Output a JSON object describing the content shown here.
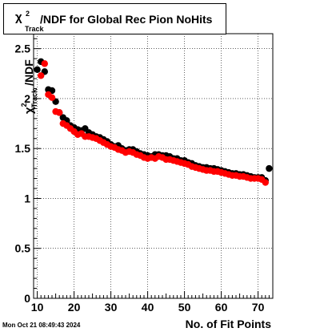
{
  "title": {
    "symbol": "χ",
    "superscript": "2",
    "subscript": "Track",
    "text": "/NDF for Global Rec Pion NoHits"
  },
  "timestamp": "Mon Oct 21 08:49:43 2024",
  "chart_data": {
    "type": "scatter",
    "title": "χ²_Track/NDF for Global Rec Pion NoHits",
    "xlabel": "No. of Fit Points",
    "ylabel": "χ²_Track/NDF",
    "xlim": [
      9,
      74
    ],
    "ylim": [
      0,
      2.65
    ],
    "x_ticks": [
      10,
      20,
      30,
      40,
      50,
      60,
      70
    ],
    "y_ticks": [
      0,
      0.5,
      1,
      1.5,
      2,
      2.5
    ],
    "x_tick_labels": [
      "10",
      "20",
      "30",
      "40",
      "50",
      "60",
      "70"
    ],
    "y_tick_labels": [
      "0",
      "0.5",
      "1",
      "1.5",
      "2",
      "2.5"
    ],
    "grid": true,
    "legend": "none",
    "series": [
      {
        "color": "#000000",
        "marker": "circle",
        "x": [
          10,
          11,
          12,
          13,
          14,
          15,
          16,
          17,
          18,
          19,
          20,
          21,
          22,
          23,
          24,
          25,
          26,
          27,
          28,
          29,
          30,
          31,
          32,
          33,
          34,
          35,
          36,
          37,
          38,
          39,
          40,
          41,
          42,
          43,
          44,
          45,
          46,
          47,
          48,
          49,
          50,
          51,
          52,
          53,
          54,
          55,
          56,
          57,
          58,
          59,
          60,
          61,
          62,
          63,
          64,
          65,
          66,
          67,
          68,
          69,
          70,
          71,
          72,
          73
        ],
        "y": [
          2.29,
          2.37,
          2.27,
          2.09,
          2.08,
          1.97,
          1.86,
          1.81,
          1.78,
          1.73,
          1.71,
          1.69,
          1.68,
          1.7,
          1.66,
          1.64,
          1.62,
          1.61,
          1.59,
          1.57,
          1.54,
          1.52,
          1.53,
          1.5,
          1.48,
          1.49,
          1.49,
          1.47,
          1.45,
          1.44,
          1.43,
          1.42,
          1.44,
          1.44,
          1.43,
          1.43,
          1.42,
          1.4,
          1.4,
          1.38,
          1.38,
          1.36,
          1.35,
          1.33,
          1.32,
          1.31,
          1.31,
          1.3,
          1.3,
          1.29,
          1.28,
          1.27,
          1.26,
          1.25,
          1.25,
          1.24,
          1.24,
          1.23,
          1.22,
          1.21,
          1.21,
          1.21,
          1.18,
          1.3
        ]
      },
      {
        "color": "#ff0000",
        "marker": "circle",
        "x": [
          11,
          12,
          13,
          14,
          15,
          16,
          17,
          18,
          19,
          20,
          21,
          22,
          23,
          24,
          25,
          26,
          27,
          28,
          29,
          30,
          31,
          32,
          33,
          34,
          35,
          36,
          37,
          38,
          39,
          40,
          41,
          42,
          43,
          44,
          45,
          46,
          47,
          48,
          49,
          50,
          51,
          52,
          53,
          54,
          55,
          56,
          57,
          58,
          59,
          60,
          61,
          62,
          63,
          64,
          65,
          66,
          67,
          68,
          69,
          70,
          71,
          72
        ],
        "y": [
          2.23,
          2.35,
          2.04,
          2.01,
          1.87,
          1.86,
          1.75,
          1.73,
          1.7,
          1.67,
          1.64,
          1.65,
          1.62,
          1.62,
          1.61,
          1.6,
          1.58,
          1.56,
          1.54,
          1.52,
          1.51,
          1.49,
          1.48,
          1.46,
          1.47,
          1.46,
          1.44,
          1.43,
          1.41,
          1.4,
          1.41,
          1.4,
          1.42,
          1.41,
          1.39,
          1.39,
          1.38,
          1.37,
          1.36,
          1.35,
          1.34,
          1.32,
          1.31,
          1.3,
          1.29,
          1.28,
          1.28,
          1.27,
          1.27,
          1.26,
          1.25,
          1.24,
          1.23,
          1.23,
          1.22,
          1.22,
          1.21,
          1.2,
          1.2,
          1.2,
          1.19,
          1.16
        ]
      }
    ]
  }
}
